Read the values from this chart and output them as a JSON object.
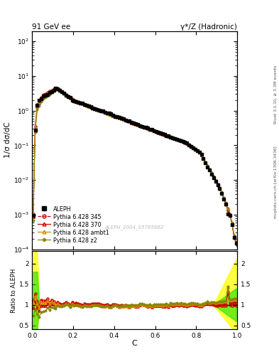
{
  "title_left": "91 GeV ee",
  "title_right": "γ*/Z (Hadronic)",
  "ylabel_main": "1/σ dσ/dC",
  "ylabel_ratio": "Ratio to ALEPH",
  "xlabel": "C",
  "right_label_top": "Rivet 3.1.10, ≥ 3.3M events",
  "right_label_bottom": "mcplots.cern.ch [arXiv:1306.3436]",
  "watermark": "ALEPH_2004_S5765862",
  "ylim_main": [
    0.0001,
    200
  ],
  "ylim_ratio": [
    0.4,
    2.3
  ],
  "yticks_ratio": [
    0.5,
    1.0,
    1.5,
    2.0
  ],
  "ytick_labels_ratio": [
    "0.5",
    "1",
    "1.5",
    "2"
  ],
  "background_color": "#ffffff",
  "aleph_color": "#000000",
  "p345_color": "#cc0000",
  "p370_color": "#cc0000",
  "ambt1_color": "#dd8800",
  "z2_color": "#888800",
  "band_yellow_color": "#ffff00",
  "band_yellow_alpha": 0.75,
  "band_green_color": "#00dd00",
  "band_green_alpha": 0.55,
  "legend_labels": [
    "ALEPH",
    "Pythia 6.428 345",
    "Pythia 6.428 370",
    "Pythia 6.428 ambt1",
    "Pythia 6.428 z2"
  ]
}
